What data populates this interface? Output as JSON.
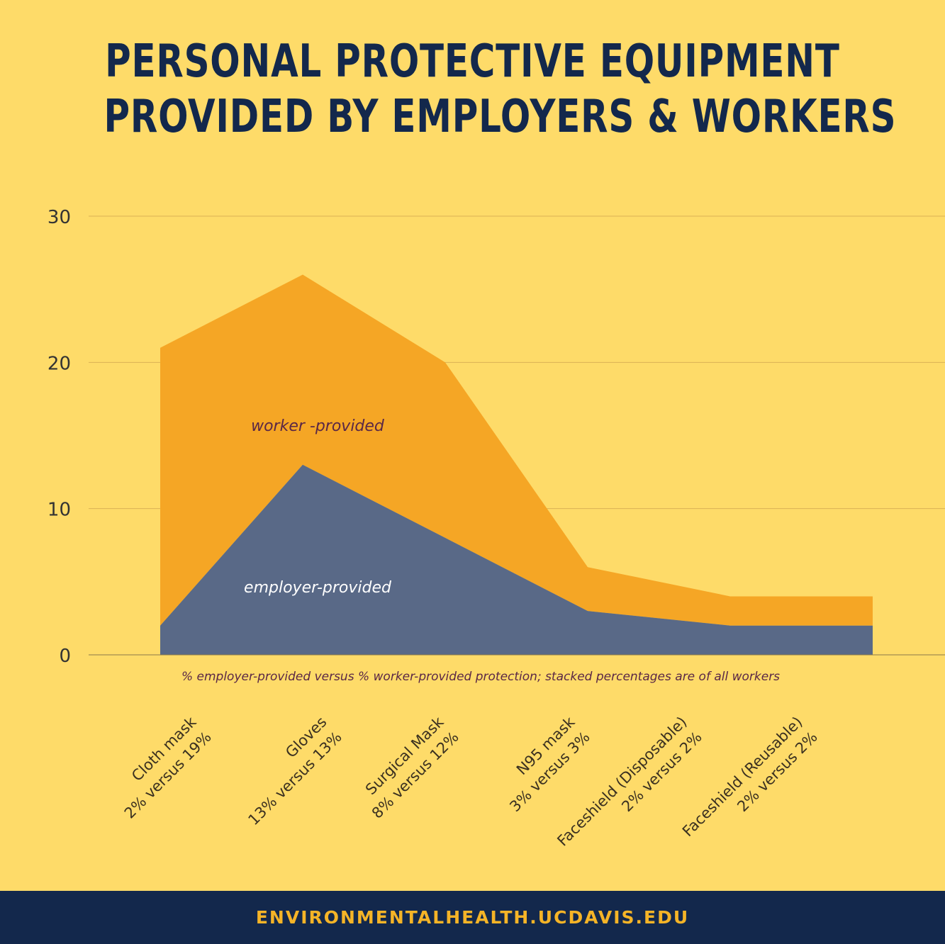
{
  "header": {
    "title_line1": "PERSONAL PROTECTIVE EQUIPMENT",
    "title_line2": "PROVIDED BY EMPLOYERS  & WORKERS"
  },
  "footer": {
    "url": "ENVIRONMENTALHEALTH.UCDAVIS.EDU"
  },
  "colors": {
    "background": "#fedb69",
    "navy": "#13284c",
    "employer": "#596987",
    "worker": "#f5a625",
    "gridline": "#d9b155",
    "annotation": "#5a2746",
    "footer_text": "#f5b427"
  },
  "chart_data": {
    "type": "area",
    "stacked": true,
    "categories": [
      [
        "Cloth mask",
        "2% versus 19%"
      ],
      [
        "Gloves",
        "13% versus 13%"
      ],
      [
        "Surgical Mask",
        "8%  versus 12%"
      ],
      [
        "N95 mask",
        "3%  versus 3%"
      ],
      [
        "Faceshield (Disposable)",
        "2%  versus 2%"
      ],
      [
        "Faceshield (Reusable)",
        "2%  versus 2%"
      ]
    ],
    "series": [
      {
        "name": "employer-provided",
        "values": [
          2,
          13,
          8,
          3,
          2,
          2
        ],
        "color": "#596987"
      },
      {
        "name": "worker -provided",
        "values": [
          19,
          13,
          12,
          3,
          2,
          2
        ],
        "color": "#f5a625"
      }
    ],
    "ylim": [
      0,
      30
    ],
    "yticks": [
      0,
      10,
      20,
      30
    ],
    "grid": true,
    "xlabel": "% employer-provided versus % worker-provided protection; stacked percentages are of all workers",
    "ylabel": ""
  }
}
